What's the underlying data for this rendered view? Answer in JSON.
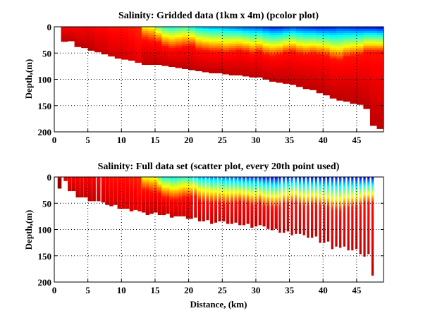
{
  "chart_data": [
    {
      "type": "heatmap",
      "plot_kind": "pcolor",
      "title": "Salinity: Gridded data (1km x 4m) (pcolor plot)",
      "xlabel": "",
      "ylabel": "Depth,(m)",
      "xlim": [
        0,
        49
      ],
      "ylim": [
        200,
        0
      ],
      "xticks": [
        "0",
        "5",
        "10",
        "15",
        "20",
        "25",
        "30",
        "35",
        "40",
        "45"
      ],
      "yticks": [
        "0",
        "50",
        "100",
        "150",
        "200"
      ],
      "grid": true,
      "colormap": "jet",
      "grid_cell": {
        "dx_km": 1,
        "dz_m": 4
      },
      "bottom_depth_m": [
        0,
        28,
        27,
        38,
        40,
        45,
        48,
        52,
        56,
        60,
        62,
        64,
        68,
        72,
        72,
        72,
        74,
        76,
        78,
        80,
        82,
        84,
        86,
        88,
        88,
        90,
        92,
        92,
        94,
        96,
        96,
        100,
        104,
        106,
        108,
        110,
        114,
        118,
        120,
        126,
        130,
        136,
        140,
        142,
        146,
        148,
        156,
        188,
        194
      ],
      "fresh_layer_depth_m": [
        0,
        0,
        0,
        0,
        0,
        0,
        0,
        0,
        0,
        0,
        0,
        0,
        0,
        6,
        10,
        12,
        20,
        24,
        22,
        20,
        18,
        26,
        28,
        30,
        30,
        32,
        30,
        28,
        30,
        34,
        30,
        36,
        38,
        36,
        32,
        30,
        34,
        36,
        34,
        36,
        38,
        44,
        46,
        40,
        38,
        36,
        30,
        30,
        30
      ],
      "surface_value_norm": [
        0.88,
        0.88,
        0.88,
        0.88,
        0.88,
        0.88,
        0.87,
        0.87,
        0.86,
        0.86,
        0.86,
        0.85,
        0.84,
        0.62,
        0.6,
        0.48,
        0.4,
        0.38,
        0.4,
        0.42,
        0.36,
        0.32,
        0.3,
        0.28,
        0.28,
        0.26,
        0.24,
        0.22,
        0.2,
        0.2,
        0.18,
        0.16,
        0.14,
        0.14,
        0.16,
        0.18,
        0.16,
        0.15,
        0.14,
        0.13,
        0.13,
        0.14,
        0.16,
        0.15,
        0.14,
        0.13,
        0.12,
        0.12,
        0.1
      ]
    },
    {
      "type": "scatter",
      "plot_kind": "scatter",
      "title": "Salinity: Full data set (scatter plot, every 20th point used)",
      "xlabel": "Distance, (km)",
      "ylabel": "Depth,(m)",
      "xlim": [
        0,
        49
      ],
      "ylim": [
        200,
        0
      ],
      "xticks": [
        "0",
        "5",
        "10",
        "15",
        "20",
        "25",
        "30",
        "35",
        "40",
        "45"
      ],
      "yticks": [
        "0",
        "50",
        "100",
        "150",
        "200"
      ],
      "grid": true,
      "colormap": "jet",
      "profile_positions_km": [
        0.5,
        1.4,
        2.0,
        2.6,
        3.2,
        3.8,
        4.4,
        5.0,
        5.6,
        6.3,
        7.0,
        7.6,
        8.2,
        8.8,
        9.4,
        10.0,
        10.6,
        11.2,
        11.8,
        12.4,
        13.0,
        13.6,
        14.2,
        14.8,
        15.4,
        16.0,
        16.6,
        17.2,
        17.8,
        18.4,
        19.0,
        19.6,
        20.2,
        20.8,
        21.4,
        22.0,
        22.6,
        23.2,
        23.8,
        24.4,
        25.0,
        25.6,
        26.2,
        26.8,
        27.4,
        28.0,
        28.6,
        29.2,
        29.8,
        30.4,
        31.0,
        31.6,
        32.2,
        32.8,
        33.4,
        34.0,
        34.6,
        35.2,
        35.8,
        36.4,
        37.0,
        37.6,
        38.2,
        38.8,
        39.4,
        40.0,
        40.6,
        41.2,
        41.8,
        42.4,
        43.0,
        43.6,
        44.2,
        44.8,
        45.4,
        46.0,
        46.6,
        47.2
      ]
    }
  ]
}
